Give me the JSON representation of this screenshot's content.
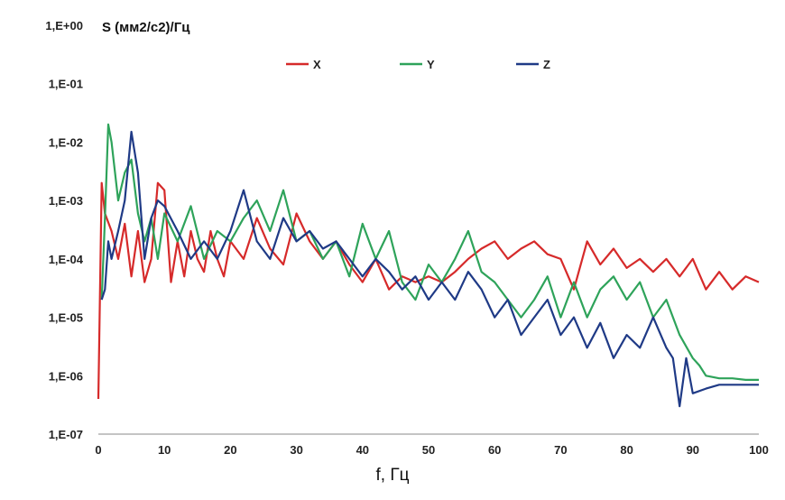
{
  "chart_data": {
    "type": "line",
    "y_title": "S (мм2/с2)/Гц",
    "xlabel": "f, Гц",
    "xlim": [
      0,
      100
    ],
    "x_ticks": [
      0,
      10,
      20,
      30,
      40,
      50,
      60,
      70,
      80,
      90,
      100
    ],
    "x_tick_labels": [
      "0",
      "10",
      "20",
      "30",
      "40",
      "50",
      "60",
      "70",
      "80",
      "90",
      "100"
    ],
    "yscale": "log",
    "ylim": [
      1e-07,
      1
    ],
    "y_ticks": [
      1e-07,
      1e-06,
      1e-05,
      0.0001,
      0.001,
      0.01,
      0.1,
      1
    ],
    "y_tick_labels": [
      "1,E-07",
      "1,E-06",
      "1,E-05",
      "1,E-04",
      "1,E-03",
      "1,E-02",
      "1,E-01",
      "1,E+00"
    ],
    "grid": false,
    "legend_position": "top",
    "series": [
      {
        "name": "X",
        "color": "#d62a2a",
        "x": [
          0,
          0.5,
          1,
          2,
          3,
          4,
          5,
          6,
          7,
          8,
          9,
          10,
          11,
          12,
          13,
          14,
          15,
          16,
          17,
          18,
          19,
          20,
          22,
          24,
          26,
          28,
          30,
          32,
          34,
          36,
          38,
          40,
          42,
          44,
          46,
          48,
          50,
          52,
          54,
          56,
          58,
          60,
          62,
          64,
          66,
          68,
          70,
          72,
          74,
          76,
          78,
          80,
          82,
          84,
          86,
          88,
          90,
          92,
          94,
          96,
          98,
          100
        ],
        "y": [
          4e-07,
          0.002,
          0.0006,
          0.0003,
          0.0001,
          0.0004,
          5e-05,
          0.0003,
          4e-05,
          0.0001,
          0.002,
          0.0015,
          4e-05,
          0.0002,
          5e-05,
          0.0003,
          0.0001,
          6e-05,
          0.0003,
          0.0001,
          5e-05,
          0.0002,
          0.0001,
          0.0005,
          0.00015,
          8e-05,
          0.0006,
          0.0002,
          0.0001,
          0.0002,
          8e-05,
          4e-05,
          0.0001,
          3e-05,
          5e-05,
          4e-05,
          5e-05,
          4e-05,
          6e-05,
          0.0001,
          0.00015,
          0.0002,
          0.0001,
          0.00015,
          0.0002,
          0.00012,
          0.0001,
          3e-05,
          0.0002,
          8e-05,
          0.00015,
          7e-05,
          0.0001,
          6e-05,
          0.0001,
          5e-05,
          0.0001,
          3e-05,
          6e-05,
          3e-05,
          5e-05,
          4e-05
        ]
      },
      {
        "name": "Y",
        "color": "#2ea35a",
        "x": [
          0.5,
          1,
          1.5,
          2,
          3,
          4,
          5,
          6,
          7,
          8,
          9,
          10,
          12,
          14,
          16,
          18,
          20,
          22,
          24,
          26,
          28,
          30,
          32,
          34,
          36,
          38,
          40,
          42,
          44,
          46,
          48,
          50,
          52,
          54,
          56,
          58,
          60,
          62,
          64,
          66,
          68,
          70,
          72,
          74,
          76,
          78,
          80,
          82,
          84,
          86,
          88,
          90,
          91,
          92,
          94,
          96,
          98,
          100
        ],
        "y": [
          2e-05,
          0.0005,
          0.02,
          0.01,
          0.001,
          0.003,
          0.005,
          0.0006,
          0.0002,
          0.0005,
          0.0001,
          0.0006,
          0.0002,
          0.0008,
          0.0001,
          0.0003,
          0.0002,
          0.0005,
          0.001,
          0.0003,
          0.0015,
          0.0002,
          0.0003,
          0.0001,
          0.0002,
          5e-05,
          0.0004,
          0.0001,
          0.0003,
          4e-05,
          2e-05,
          8e-05,
          4e-05,
          0.0001,
          0.0003,
          6e-05,
          4e-05,
          2e-05,
          1e-05,
          2e-05,
          5e-05,
          1e-05,
          4e-05,
          1e-05,
          3e-05,
          5e-05,
          2e-05,
          4e-05,
          1e-05,
          2e-05,
          5e-06,
          2e-06,
          1.5e-06,
          1e-06,
          9e-07,
          9e-07,
          8.5e-07,
          8.5e-07
        ]
      },
      {
        "name": "Z",
        "color": "#1f3a86",
        "x": [
          0.5,
          1,
          1.5,
          2,
          3,
          4,
          5,
          6,
          7,
          8,
          9,
          10,
          12,
          14,
          16,
          18,
          20,
          22,
          24,
          26,
          28,
          30,
          32,
          34,
          36,
          38,
          40,
          42,
          44,
          46,
          48,
          50,
          52,
          54,
          56,
          58,
          60,
          62,
          64,
          66,
          68,
          70,
          72,
          74,
          76,
          78,
          80,
          82,
          84,
          86,
          87,
          88,
          89,
          90,
          92,
          94,
          96,
          98,
          100
        ],
        "y": [
          2e-05,
          3e-05,
          0.0002,
          0.0001,
          0.0003,
          0.001,
          0.015,
          0.003,
          0.0001,
          0.0005,
          0.001,
          0.0008,
          0.0003,
          0.0001,
          0.0002,
          0.0001,
          0.0003,
          0.0015,
          0.0002,
          0.0001,
          0.0005,
          0.0002,
          0.0003,
          0.00015,
          0.0002,
          0.0001,
          5e-05,
          0.0001,
          6e-05,
          3e-05,
          5e-05,
          2e-05,
          4e-05,
          2e-05,
          6e-05,
          3e-05,
          1e-05,
          2e-05,
          5e-06,
          1e-05,
          2e-05,
          5e-06,
          1e-05,
          3e-06,
          8e-06,
          2e-06,
          5e-06,
          3e-06,
          1e-05,
          3e-06,
          2e-06,
          3e-07,
          2e-06,
          5e-07,
          6e-07,
          7e-07,
          7e-07,
          7e-07,
          7e-07
        ]
      }
    ]
  }
}
